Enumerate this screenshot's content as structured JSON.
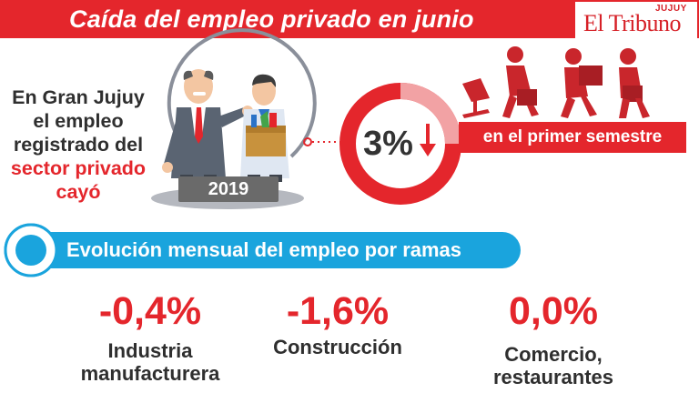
{
  "header": {
    "title": "Caída del empleo privado en junio",
    "logo_main": "El Tribuno",
    "logo_small": "JUJUY"
  },
  "intro": {
    "line1": "En Gran Jujuy",
    "line2": "el empleo",
    "line3": "registrado del",
    "highlight": "sector privado",
    "line5": "cayó"
  },
  "year": "2019",
  "highlight": {
    "value": "3%",
    "arrow": "↓",
    "label": "en el primer semestre"
  },
  "section_title": "Evolución mensual del empleo por ramas",
  "branches": [
    {
      "value": "-0,4%",
      "label": "Industria\nmanufacturera"
    },
    {
      "value": "-1,6%",
      "label": "Construcción"
    },
    {
      "value": "0,0%",
      "label": "Comercio,\nrestaurantes"
    }
  ],
  "colors": {
    "red": "#e4262c",
    "blue": "#1aa4dd",
    "dark_text": "#2f2f2f",
    "gray": "#6a6a6a"
  },
  "icons": [
    "boss-illustration",
    "fired-employee-illustration",
    "donut-ring",
    "down-arrow-icon",
    "walking-workers-illustration",
    "office-chair-icon"
  ]
}
